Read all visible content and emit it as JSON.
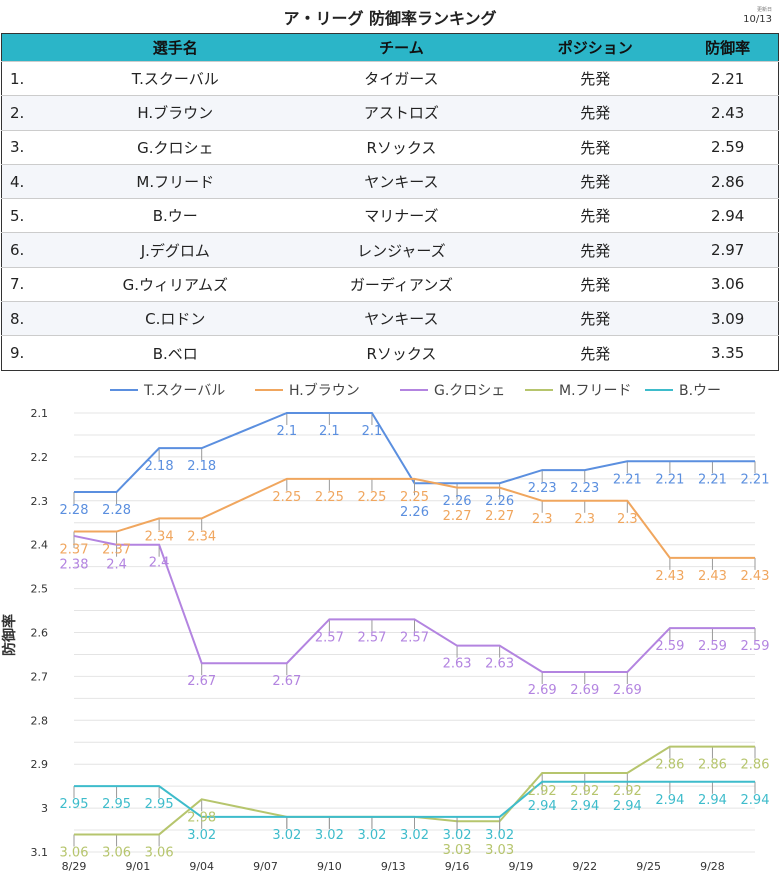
{
  "title": "ア・リーグ 防御率ランキング",
  "updated_label": "更新日",
  "updated": "10/13",
  "table": {
    "headers": [
      "選手名",
      "チーム",
      "ポジション",
      "防御率"
    ],
    "rows": [
      [
        "1.",
        "T.スクーバル",
        "タイガース",
        "先発",
        "2.21"
      ],
      [
        "2.",
        "H.ブラウン",
        "アストロズ",
        "先発",
        "2.43"
      ],
      [
        "3.",
        "G.クロシェ",
        "Rソックス",
        "先発",
        "2.59"
      ],
      [
        "4.",
        "M.フリード",
        "ヤンキース",
        "先発",
        "2.86"
      ],
      [
        "5.",
        "B.ウー",
        "マリナーズ",
        "先発",
        "2.94"
      ],
      [
        "6.",
        "J.デグロム",
        "レンジャーズ",
        "先発",
        "2.97"
      ],
      [
        "7.",
        "G.ウィリアムズ",
        "ガーディアンズ",
        "先発",
        "3.06"
      ],
      [
        "8.",
        "C.ロドン",
        "ヤンキース",
        "先発",
        "3.09"
      ],
      [
        "9.",
        "B.ベロ",
        "Rソックス",
        "先発",
        "3.35"
      ]
    ]
  },
  "chart_data": {
    "type": "line",
    "ylabel": "防御率",
    "ylim": [
      3.1,
      2.1
    ],
    "y_inverted": true,
    "yticks": [
      "2.1",
      "2.2",
      "2.3",
      "2.4",
      "2.5",
      "2.6",
      "2.7",
      "2.8",
      "2.9",
      "3",
      "3.1"
    ],
    "xticks": [
      "8/29",
      "9/01",
      "9/04",
      "9/07",
      "9/10",
      "9/13",
      "9/16",
      "9/19",
      "9/22",
      "9/25",
      "9/28"
    ],
    "x_days": [
      0,
      2,
      4,
      6,
      10,
      12,
      14,
      16,
      18,
      20,
      22,
      24,
      26,
      28,
      30,
      32
    ],
    "x": [
      "8/29",
      "8/31",
      "9/02",
      "9/04",
      "9/08",
      "9/10",
      "9/12",
      "9/14",
      "9/16",
      "9/18",
      "9/20",
      "9/22",
      "9/24",
      "9/26",
      "9/28",
      "9/30"
    ],
    "legend_position": "top",
    "series": [
      {
        "name": "T.スクーバル",
        "color": "#5b8fdf",
        "values": [
          2.28,
          2.28,
          2.18,
          2.18,
          2.1,
          2.1,
          2.1,
          2.26,
          2.26,
          2.26,
          2.23,
          2.23,
          2.21,
          2.21,
          2.21,
          2.21
        ]
      },
      {
        "name": "H.ブラウン",
        "color": "#f0a65e",
        "values": [
          2.37,
          2.37,
          2.34,
          2.34,
          2.25,
          2.25,
          2.25,
          2.25,
          2.27,
          2.27,
          2.3,
          2.3,
          2.3,
          2.43,
          2.43,
          2.43
        ]
      },
      {
        "name": "G.クロシェ",
        "color": "#b384e0",
        "values": [
          2.38,
          2.4,
          2.4,
          2.67,
          2.67,
          2.57,
          2.57,
          2.57,
          2.63,
          2.63,
          2.69,
          2.69,
          2.69,
          2.59,
          2.59,
          2.59
        ]
      },
      {
        "name": "M.フリード",
        "color": "#b6c56d",
        "values": [
          3.06,
          3.06,
          3.06,
          2.98,
          3.02,
          3.02,
          3.02,
          3.02,
          3.03,
          3.03,
          2.92,
          2.92,
          2.92,
          2.86,
          2.86,
          2.86
        ]
      },
      {
        "name": "B.ウー",
        "color": "#3ebccb",
        "values": [
          2.95,
          2.95,
          2.95,
          3.02,
          3.02,
          3.02,
          3.02,
          3.02,
          3.02,
          3.02,
          2.94,
          2.94,
          2.94,
          2.94,
          2.94,
          2.94
        ]
      }
    ]
  }
}
